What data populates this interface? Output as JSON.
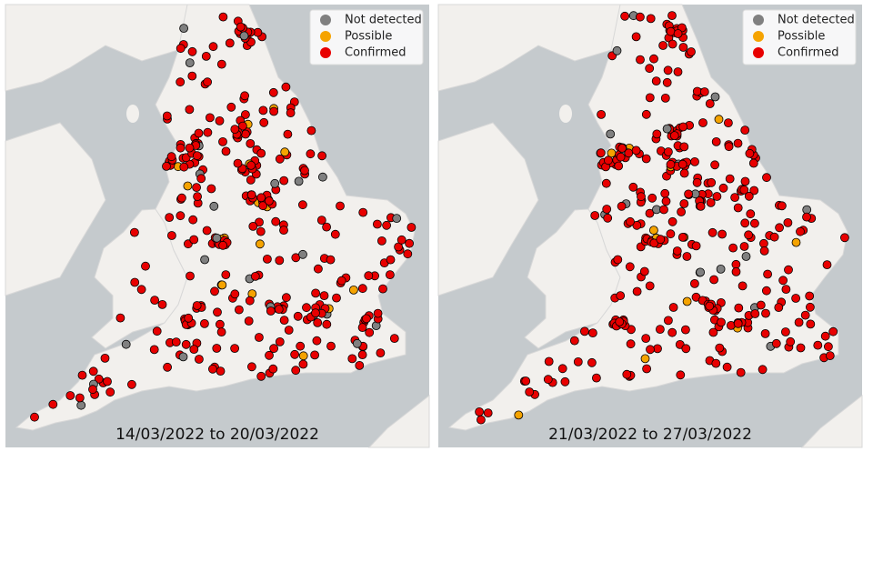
{
  "legend": [
    {
      "label": "Not detected",
      "color": "#808080"
    },
    {
      "label": "Possible",
      "color": "#f5a300"
    },
    {
      "label": "Confirmed",
      "color": "#e80000"
    }
  ],
  "panels": [
    {
      "caption": "14/03/2022 to 20/03/2022"
    },
    {
      "caption": "21/03/2022 to 27/03/2022"
    }
  ]
}
